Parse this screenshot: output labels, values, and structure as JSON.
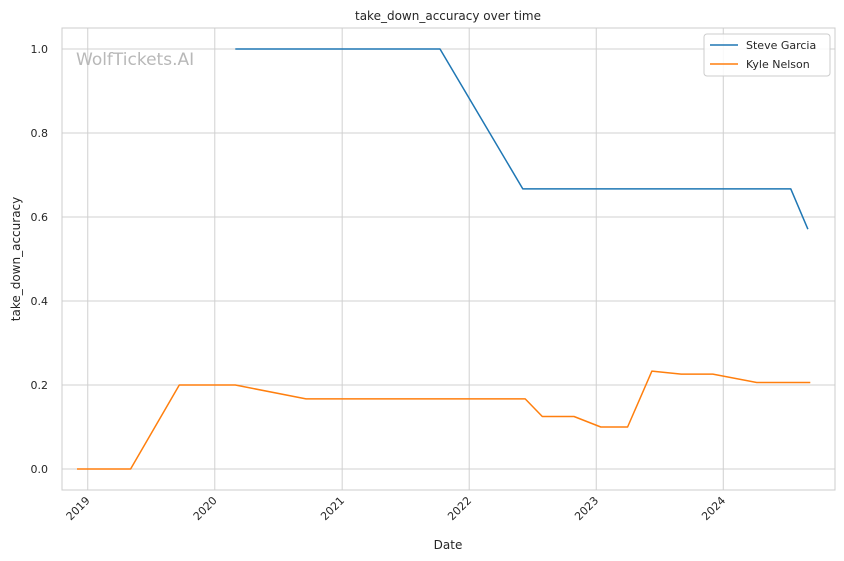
{
  "chart_data": {
    "type": "line",
    "title": "take_down_accuracy over time",
    "xlabel": "Date",
    "ylabel": "take_down_accuracy",
    "watermark": "WolfTickets.AI",
    "xlim": [
      "2018-10-19",
      "2024-11-17"
    ],
    "ylim": [
      -0.05,
      1.05
    ],
    "x_ticks": [
      "2019-01-01",
      "2020-01-01",
      "2021-01-01",
      "2022-01-01",
      "2023-01-01",
      "2024-01-01"
    ],
    "x_tick_labels": [
      "2019",
      "2020",
      "2021",
      "2022",
      "2023",
      "2024"
    ],
    "y_ticks": [
      0.0,
      0.2,
      0.4,
      0.6,
      0.8,
      1.0
    ],
    "y_tick_labels": [
      "0.0",
      "0.2",
      "0.4",
      "0.6",
      "0.8",
      "1.0"
    ],
    "grid": true,
    "legend_position": "top-right",
    "series": [
      {
        "name": "Steve Garcia",
        "color": "#1f77b4",
        "x": [
          "2020-02-29",
          "2021-10-09",
          "2022-06-04",
          "2024-07-13",
          "2024-08-31"
        ],
        "y": [
          1.0,
          1.0,
          0.667,
          0.667,
          0.571
        ]
      },
      {
        "name": "Kyle Nelson",
        "color": "#ff7f0e",
        "x": [
          "2018-12-01",
          "2019-05-04",
          "2019-09-21",
          "2020-02-29",
          "2020-09-19",
          "2022-06-11",
          "2022-07-30",
          "2022-10-29",
          "2023-01-14",
          "2023-04-01",
          "2023-06-10",
          "2023-09-02",
          "2023-12-02",
          "2024-04-06",
          "2024-09-07"
        ],
        "y": [
          0.0,
          0.0,
          0.2,
          0.2,
          0.167,
          0.167,
          0.125,
          0.125,
          0.1,
          0.1,
          0.233,
          0.226,
          0.226,
          0.206,
          0.206
        ]
      }
    ]
  }
}
